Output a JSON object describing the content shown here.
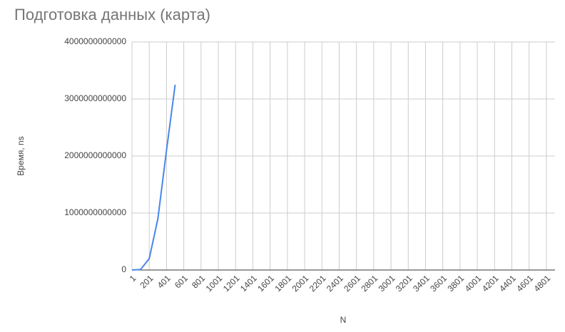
{
  "chart_data": {
    "type": "line",
    "title": "Подготовка данных (карта)",
    "x_label": "N",
    "y_label": "Время, ns",
    "categories": [
      "1",
      null,
      "201",
      null,
      "401",
      null,
      "601",
      null,
      "801",
      null,
      "1001",
      null,
      "1201",
      null,
      "1401",
      null,
      "1601",
      null,
      "1801",
      null,
      "2001",
      null,
      "2201",
      null,
      "2401",
      null,
      "2601",
      null,
      "2801",
      null,
      "3001",
      null,
      "3201",
      null,
      "3401",
      null,
      "3601",
      null,
      "3801",
      null,
      "4001",
      null,
      "4201",
      null,
      "4401",
      null,
      "4601",
      null,
      "4801",
      null
    ],
    "series": [
      {
        "name": "Время, ns",
        "color": "#4a86e8",
        "values": [
          0,
          10000000000,
          200000000000,
          900000000000,
          2100000000000,
          3250000000000,
          null,
          null,
          null,
          null,
          null,
          null,
          null,
          null,
          null,
          null,
          null,
          null,
          null,
          null,
          null,
          null,
          null,
          null,
          null,
          null,
          null,
          null,
          null,
          null,
          null,
          null,
          null,
          null,
          null,
          null,
          null,
          null,
          null,
          null,
          null,
          null,
          null,
          null,
          null,
          null,
          null,
          null,
          null,
          null
        ]
      }
    ],
    "ylim": [
      0,
      4000000000000
    ],
    "yticks": [
      0,
      1000000000000,
      2000000000000,
      3000000000000,
      4000000000000
    ],
    "grid": true
  }
}
